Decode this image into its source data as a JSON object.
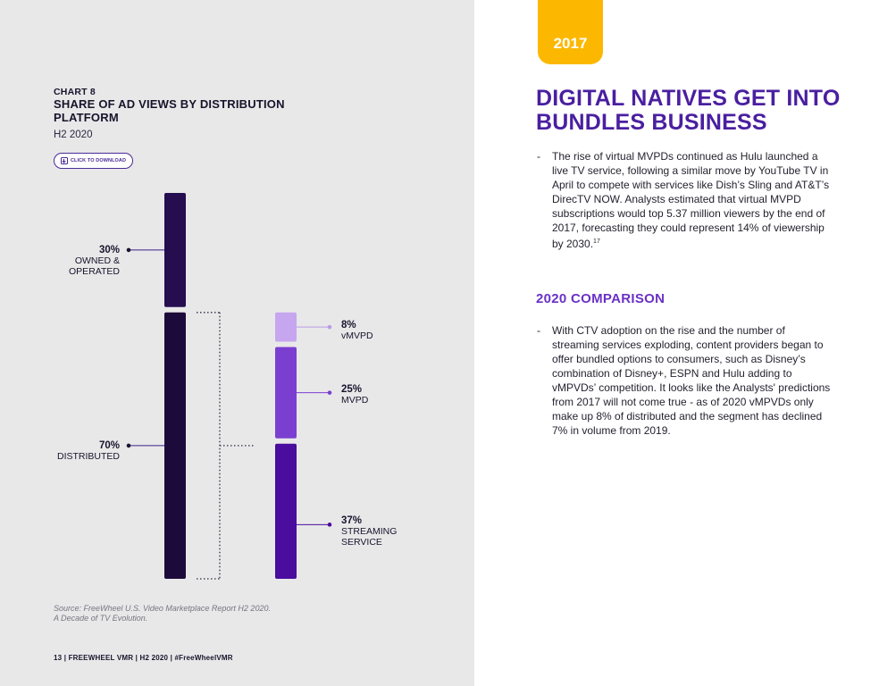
{
  "chart": {
    "kicker": "CHART 8",
    "title": "SHARE OF AD VIEWS BY DISTRIBUTION PLATFORM",
    "subtitle": "H2 2020",
    "download_label": "CLICK TO DOWNLOAD",
    "labels": [
      {
        "pct": "30%",
        "name1": "OWNED &",
        "name2": "OPERATED"
      },
      {
        "pct": "70%",
        "name1": "DISTRIBUTED",
        "name2": ""
      },
      {
        "pct": "8%",
        "name1": "vMVPD",
        "name2": ""
      },
      {
        "pct": "25%",
        "name1": "MVPD",
        "name2": ""
      },
      {
        "pct": "37%",
        "name1": "STREAMING",
        "name2": "SERVICE"
      }
    ],
    "source_line1": "Source: FreeWheel U.S. Video Marketplace Report H2 2020.",
    "source_line2": "A Decade of TV Evolution."
  },
  "chart_data": {
    "type": "bar",
    "title": "SHARE OF AD VIEWS BY DISTRIBUTION PLATFORM",
    "subtitle": "H2 2020",
    "stacks": [
      {
        "segments": [
          {
            "name": "OWNED & OPERATED",
            "value": 30,
            "color": "#250d50"
          },
          {
            "name": "DISTRIBUTED",
            "value": 70,
            "color": "#1c0b3a"
          }
        ]
      },
      {
        "segments": [
          {
            "name": "vMVPD",
            "value": 8,
            "color": "#c7a6f0"
          },
          {
            "name": "MVPD",
            "value": 25,
            "color": "#7a3fd0"
          },
          {
            "name": "STREAMING SERVICE",
            "value": 37,
            "color": "#4a0d9e"
          }
        ]
      }
    ],
    "accent_color": "#4a1fa0"
  },
  "footer": {
    "text": "13 | FREEWHEEL VMR | H2 2020 | #FreeWheelVMR"
  },
  "article": {
    "year": "2017",
    "title": "DIGITAL NATIVES GET INTO BUNDLES BUSINESS",
    "bullet1": "The rise of virtual MVPDs continued as Hulu launched a live TV service, following a similar move by YouTube TV in April to compete with services like Dish’s Sling and AT&T’s DirecTV NOW. Analysts estimated that virtual MVPD subscriptions would top 5.37 million viewers by the end of 2017, forecasting they could represent 14% of viewership by 2030.",
    "bullet1_note": "17",
    "section_title": "2020 COMPARISON",
    "bullet2": "With CTV adoption on the rise and the number of streaming services exploding, content providers began to offer bundled options to consumers, such as Disney’s combination of Disney+, ESPN and Hulu adding to vMPVDs’ competition. It looks like the Analysts' predictions from 2017 will not come true - as of 2020 vMPVDs only make up 8% of distributed and the segment has declined 7% in volume from 2019.",
    "dash": "-"
  }
}
